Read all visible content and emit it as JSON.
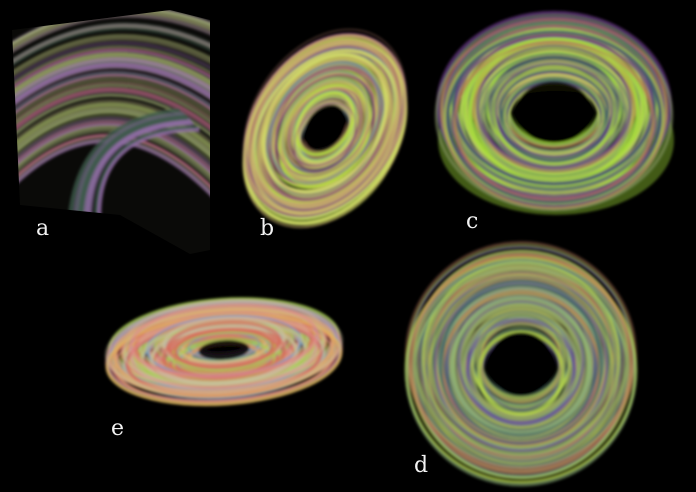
{
  "panels": [
    {
      "id": "a",
      "label": "a",
      "colors": [
        "#8fa05a",
        "#b9c785",
        "#6d6a4a",
        "#9a6fb0",
        "#3d5a4a",
        "#c26a8a"
      ]
    },
    {
      "id": "b",
      "label": "b",
      "colors": [
        "#b7e33a",
        "#d9e86a",
        "#b07a6a",
        "#8a4a7a",
        "#6a8a9a",
        "#c8b06a"
      ]
    },
    {
      "id": "c",
      "label": "c",
      "colors": [
        "#a6e03a",
        "#c8d860",
        "#c0775a",
        "#6a3a8a",
        "#8a9a6a",
        "#3a5a6a"
      ]
    },
    {
      "id": "d",
      "label": "d",
      "colors": [
        "#b8d648",
        "#9aa85a",
        "#c07a5a",
        "#6a5a9a",
        "#4a6a6a",
        "#8ab07a"
      ]
    },
    {
      "id": "e",
      "label": "e",
      "colors": [
        "#e0b060",
        "#d86a5a",
        "#a8d050",
        "#6a9ad0",
        "#c8c0a0",
        "#e08a8a"
      ]
    }
  ]
}
